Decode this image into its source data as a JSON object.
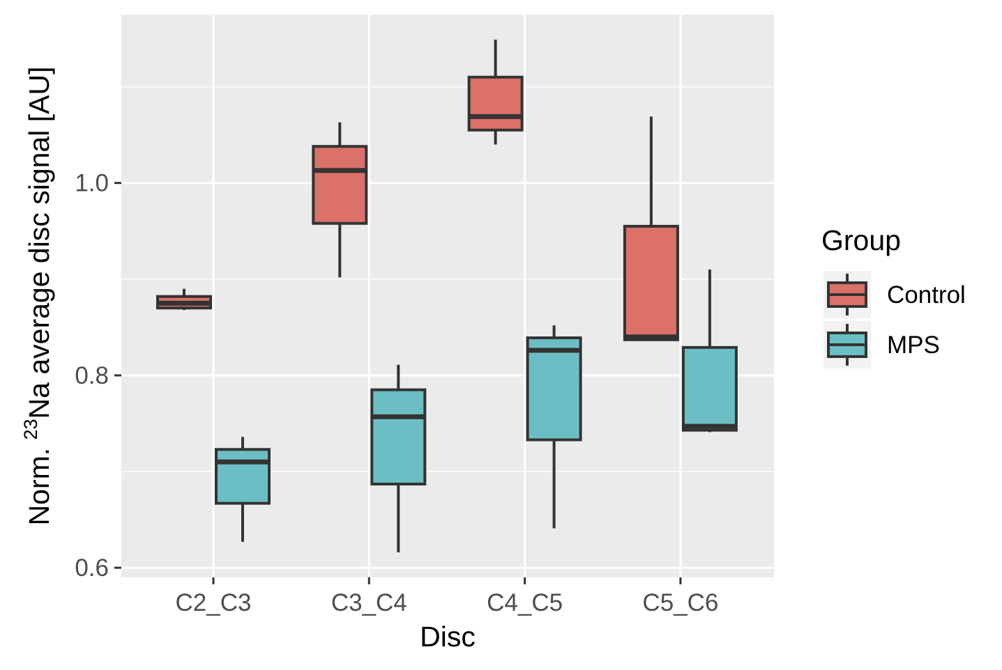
{
  "chart_data": {
    "type": "box",
    "title": "",
    "xlabel": "Disc",
    "ylabel": {
      "prefix": "Norm. ",
      "superscript": "23",
      "suffix": "Na average disc signal [AU]"
    },
    "ylim": [
      0.59,
      1.175
    ],
    "y_ticks": [
      0.6,
      0.8,
      1.0
    ],
    "y_tick_labels": [
      "0.6",
      "0.8",
      "1.0"
    ],
    "y_minor_ticks": [
      0.7,
      0.9,
      1.1
    ],
    "categories": [
      "C2_C3",
      "C3_C4",
      "C4_C5",
      "C5_C6"
    ],
    "legend": {
      "title": "Group",
      "position": "right"
    },
    "grid": true,
    "series": [
      {
        "name": "Control",
        "color": "#dc7169",
        "boxes": [
          {
            "whisker_low": 0.868,
            "q1": 0.87,
            "median": 0.875,
            "q3": 0.882,
            "whisker_high": 0.89
          },
          {
            "whisker_low": 0.902,
            "q1": 0.958,
            "median": 1.013,
            "q3": 1.038,
            "whisker_high": 1.063
          },
          {
            "whisker_low": 1.04,
            "q1": 1.055,
            "median": 1.069,
            "q3": 1.11,
            "whisker_high": 1.149
          },
          {
            "whisker_low": 0.837,
            "q1": 0.837,
            "median": 0.84,
            "q3": 0.955,
            "whisker_high": 1.069
          }
        ]
      },
      {
        "name": "MPS",
        "color": "#6bbfc4",
        "boxes": [
          {
            "whisker_low": 0.627,
            "q1": 0.667,
            "median": 0.71,
            "q3": 0.723,
            "whisker_high": 0.736
          },
          {
            "whisker_low": 0.616,
            "q1": 0.687,
            "median": 0.757,
            "q3": 0.785,
            "whisker_high": 0.811
          },
          {
            "whisker_low": 0.641,
            "q1": 0.733,
            "median": 0.826,
            "q3": 0.839,
            "whisker_high": 0.852
          },
          {
            "whisker_low": 0.741,
            "q1": 0.743,
            "median": 0.747,
            "q3": 0.829,
            "whisker_high": 0.91
          }
        ]
      }
    ]
  }
}
